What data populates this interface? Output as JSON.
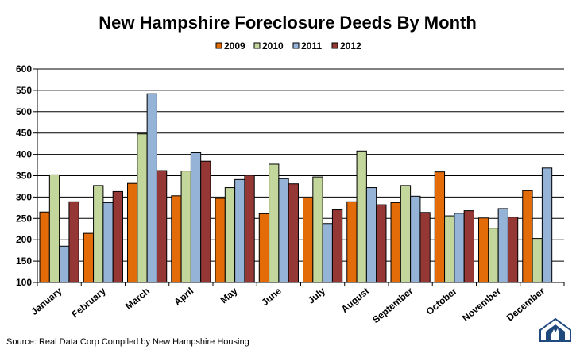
{
  "chart_data": {
    "type": "bar",
    "title": "New Hampshire Foreclosure Deeds By Month",
    "categories": [
      "January",
      "February",
      "March",
      "April",
      "May",
      "June",
      "July",
      "August",
      "September",
      "October",
      "November",
      "December"
    ],
    "series": [
      {
        "name": "2009",
        "color": "#E36C09",
        "values": [
          265,
          215,
          332,
          303,
          297,
          261,
          298,
          289,
          287,
          359,
          251,
          315
        ]
      },
      {
        "name": "2010",
        "color": "#C3D69B",
        "values": [
          352,
          327,
          448,
          361,
          322,
          377,
          347,
          408,
          327,
          256,
          227,
          203
        ]
      },
      {
        "name": "2011",
        "color": "#95B3D7",
        "values": [
          185,
          287,
          542,
          404,
          341,
          343,
          238,
          322,
          302,
          262,
          273,
          368
        ]
      },
      {
        "name": "2012",
        "color": "#953735",
        "values": [
          289,
          313,
          362,
          384,
          351,
          331,
          270,
          282,
          264,
          268,
          253,
          null
        ]
      }
    ],
    "ylim": [
      100,
      600
    ],
    "yticks": [
      "100",
      "150",
      "200",
      "250",
      "300",
      "350",
      "400",
      "450",
      "500",
      "550",
      "600"
    ],
    "grid": true,
    "legend_position": "top-center"
  },
  "source_text": "Source: Real Data Corp  Compiled by New Hampshire Housing",
  "logo_icon": "new-hampshire-housing-logo"
}
